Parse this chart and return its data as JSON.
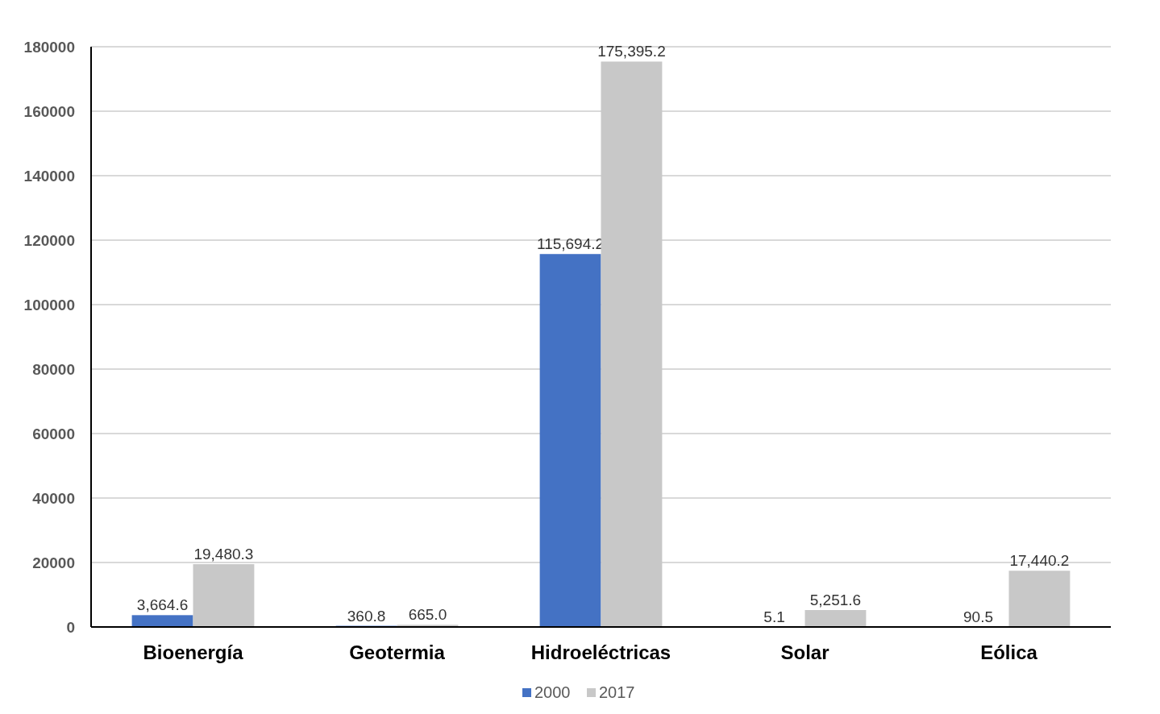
{
  "chart_data": {
    "type": "bar",
    "categories": [
      "Bioenergía",
      "Geotermia",
      "Hidroeléctricas",
      "Solar",
      "Eólica"
    ],
    "series": [
      {
        "name": "2000",
        "color": "#4472c4",
        "values": [
          3664.6,
          360.8,
          115694.2,
          5.1,
          90.5
        ],
        "value_labels": [
          "3,664.6",
          "360.8",
          "115,694.2",
          "5.1",
          "90.5"
        ]
      },
      {
        "name": "2017",
        "color": "#c8c8c8",
        "values": [
          19480.3,
          665.0,
          175395.2,
          5251.6,
          17440.2
        ],
        "value_labels": [
          "19,480.3",
          "665.0",
          "175,395.2",
          "5,251.6",
          "17,440.2"
        ]
      }
    ],
    "ylim": [
      0,
      180000
    ],
    "yticks": [
      0,
      20000,
      40000,
      60000,
      80000,
      100000,
      120000,
      140000,
      160000,
      180000
    ],
    "grid": "y",
    "legend": "bottom"
  }
}
